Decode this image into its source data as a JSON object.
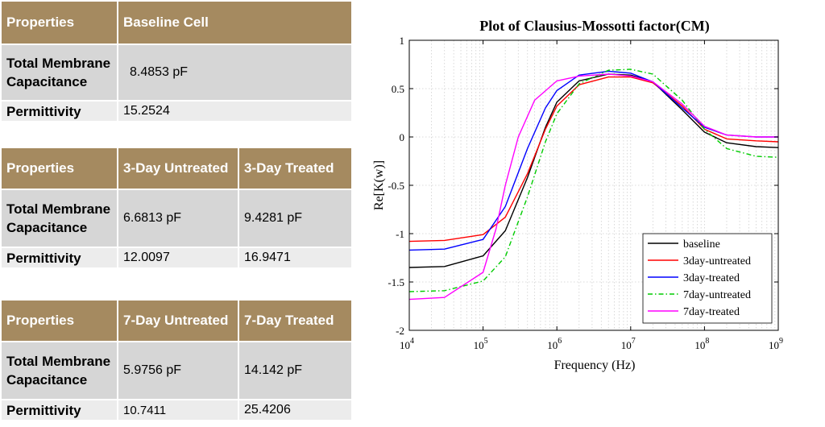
{
  "tables": [
    {
      "header": [
        "Properties",
        "Baseline Cell"
      ],
      "rows": [
        {
          "label": "Total Membrane Capacitance",
          "values": [
            "8.4853 pF"
          ]
        },
        {
          "label": "Permittivity",
          "values": [
            "15.2524"
          ]
        }
      ]
    },
    {
      "header": [
        "Properties",
        "3-Day Untreated",
        "3-Day Treated"
      ],
      "rows": [
        {
          "label": "Total Membrane Capacitance",
          "values": [
            "6.6813 pF",
            "9.4281 pF"
          ]
        },
        {
          "label": "Permittivity",
          "values": [
            "12.0097",
            "16.9471"
          ]
        }
      ]
    },
    {
      "header": [
        "Properties",
        "7-Day Untreated",
        "7-Day Treated"
      ],
      "rows": [
        {
          "label": "Total Membrane Capacitance",
          "values": [
            "5.9756 pF",
            "14.142 pF"
          ]
        },
        {
          "label": "Permittivity",
          "values": [
            "10.7411",
            "25.4206"
          ]
        }
      ]
    }
  ],
  "chart_data": {
    "type": "line",
    "title": "Plot of Clausius-Mossotti factor(CM)",
    "xlabel": "Frequency (Hz)",
    "ylabel": "Re[K(w)]",
    "xscale": "log",
    "xlim": [
      10000,
      1000000000
    ],
    "ylim": [
      -2,
      1
    ],
    "grid": true,
    "legend_position": "bottom-right",
    "x_ticks": [
      {
        "base": "10",
        "exp": "4"
      },
      {
        "base": "10",
        "exp": "5"
      },
      {
        "base": "10",
        "exp": "6"
      },
      {
        "base": "10",
        "exp": "7"
      },
      {
        "base": "10",
        "exp": "8"
      },
      {
        "base": "10",
        "exp": "9"
      }
    ],
    "y_ticks": [
      "1",
      "0.5",
      "0",
      "-0.5",
      "-1",
      "-1.5",
      "-2"
    ],
    "y_tick_values": [
      1,
      0.5,
      0,
      -0.5,
      -1,
      -1.5,
      -2
    ],
    "series": [
      {
        "name": "baseline",
        "color": "#000000",
        "dash": "solid",
        "x": [
          10000,
          30000,
          100000,
          200000,
          400000,
          700000,
          1000000,
          2000000,
          5000000,
          10000000,
          20000000,
          50000000,
          100000000,
          200000000,
          500000000,
          1000000000
        ],
        "y": [
          -1.35,
          -1.34,
          -1.23,
          -0.97,
          -0.42,
          0.1,
          0.36,
          0.58,
          0.65,
          0.64,
          0.57,
          0.28,
          0.05,
          -0.06,
          -0.1,
          -0.11
        ]
      },
      {
        "name": "3day-untreated",
        "color": "#ff0000",
        "dash": "solid",
        "x": [
          10000,
          30000,
          100000,
          200000,
          400000,
          700000,
          1000000,
          2000000,
          5000000,
          10000000,
          20000000,
          50000000,
          100000000,
          200000000,
          500000000,
          1000000000
        ],
        "y": [
          -1.08,
          -1.07,
          -1.01,
          -0.83,
          -0.38,
          0.08,
          0.32,
          0.54,
          0.62,
          0.62,
          0.56,
          0.32,
          0.08,
          -0.02,
          -0.04,
          -0.05
        ]
      },
      {
        "name": "3day-treated",
        "color": "#0000ff",
        "dash": "solid",
        "x": [
          10000,
          30000,
          100000,
          200000,
          400000,
          700000,
          1000000,
          2000000,
          5000000,
          10000000,
          20000000,
          50000000,
          100000000,
          200000000,
          500000000,
          1000000000
        ],
        "y": [
          -1.17,
          -1.16,
          -1.06,
          -0.72,
          -0.12,
          0.3,
          0.48,
          0.64,
          0.68,
          0.66,
          0.57,
          0.3,
          0.1,
          0.02,
          0.0,
          0.0
        ]
      },
      {
        "name": "7day-untreated",
        "color": "#00cc00",
        "dash": "dashdot",
        "x": [
          10000,
          30000,
          100000,
          200000,
          400000,
          700000,
          1000000,
          2000000,
          5000000,
          10000000,
          20000000,
          50000000,
          100000000,
          200000000,
          500000000,
          1000000000
        ],
        "y": [
          -1.6,
          -1.59,
          -1.49,
          -1.24,
          -0.62,
          -0.05,
          0.24,
          0.55,
          0.69,
          0.7,
          0.65,
          0.38,
          0.08,
          -0.12,
          -0.2,
          -0.21
        ]
      },
      {
        "name": "7day-treated",
        "color": "#ff00ff",
        "dash": "solid",
        "x": [
          10000,
          30000,
          100000,
          150000,
          200000,
          300000,
          500000,
          1000000,
          2000000,
          5000000,
          10000000,
          20000000,
          50000000,
          100000000,
          200000000,
          500000000,
          1000000000
        ],
        "y": [
          -1.68,
          -1.66,
          -1.4,
          -0.95,
          -0.5,
          0.0,
          0.38,
          0.58,
          0.63,
          0.65,
          0.63,
          0.57,
          0.34,
          0.11,
          0.02,
          0.0,
          0.0
        ]
      }
    ]
  }
}
